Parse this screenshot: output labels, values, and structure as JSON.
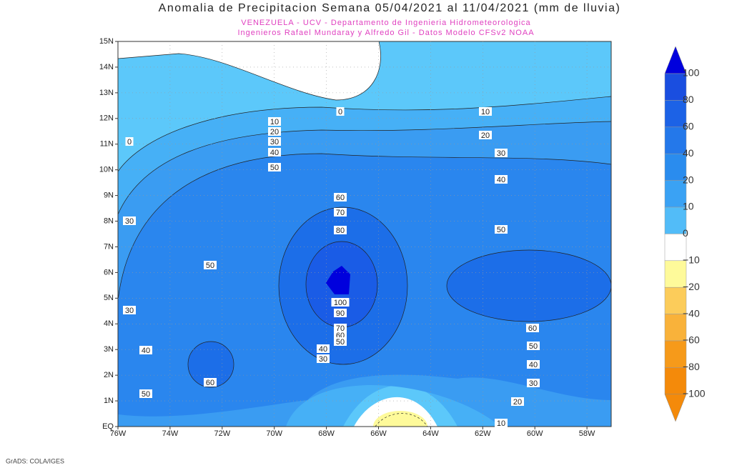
{
  "header": {
    "title": "Anomalia de Precipitacion Semana 05/04/2021 al 11/04/2021 (mm de lluvia)",
    "subtitle_1": "VENEZUELA - UCV - Departamento de Ingenieria Hidrometeorologica",
    "subtitle_2": "Ingenieros Rafael Mundaray y Alfredo Gil - Datos Modelo CFSv2 NOAA"
  },
  "map": {
    "lat_labels": [
      "15N",
      "14N",
      "13N",
      "12N",
      "11N",
      "10N",
      "9N",
      "8N",
      "7N",
      "6N",
      "5N",
      "4N",
      "3N",
      "2N",
      "1N",
      "EQ"
    ],
    "lon_labels": [
      "76W",
      "74W",
      "72W",
      "70W",
      "68W",
      "66W",
      "64W",
      "62W",
      "60W",
      "58W"
    ],
    "contour_labels": [
      "10",
      "20",
      "30",
      "40",
      "50",
      "0",
      "10",
      "20",
      "30",
      "40",
      "0",
      "30",
      "50",
      "60",
      "70",
      "80",
      "100",
      "90",
      "70",
      "60",
      "50",
      "40",
      "30",
      "40",
      "60",
      "50",
      "30",
      "50",
      "60",
      "50",
      "40",
      "30",
      "20",
      "10"
    ]
  },
  "colorbar": {
    "labels": [
      "100",
      "80",
      "60",
      "40",
      "20",
      "10",
      "0",
      "−10",
      "−20",
      "−40",
      "−60",
      "−80",
      "−100"
    ]
  },
  "footer": {
    "credit": "GrADS: COLA/IGES"
  }
}
